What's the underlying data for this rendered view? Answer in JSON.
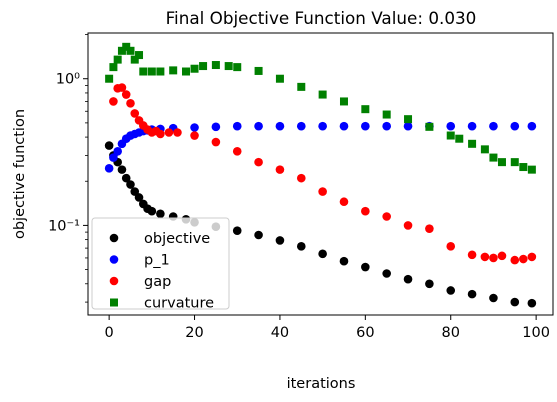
{
  "chart_data": {
    "type": "scatter",
    "title": "Final Objective Function Value: 0.030",
    "xlabel": "iterations",
    "ylabel": "objective function",
    "x_range": [
      -4.95,
      103.95
    ],
    "y_range": [
      0.0245,
      2.05
    ],
    "y_scale": "log",
    "x_ticks": [
      0,
      20,
      40,
      60,
      80,
      100
    ],
    "x_tick_labels": [
      "0",
      "20",
      "40",
      "60",
      "80",
      "100"
    ],
    "y_ticks": [
      0.1,
      1.0
    ],
    "y_tick_labels": [
      "10⁻¹",
      "10⁰"
    ],
    "grid": false,
    "legend_position": "lower-left",
    "series": [
      {
        "name": "objective",
        "marker": "circle",
        "color": "#000000",
        "x": [
          0,
          1,
          2,
          3,
          4,
          5,
          6,
          7,
          8,
          9,
          10,
          12,
          15,
          18,
          20,
          25,
          30,
          35,
          40,
          45,
          50,
          55,
          60,
          65,
          70,
          75,
          80,
          85,
          90,
          95,
          99
        ],
        "y": [
          0.35,
          0.3,
          0.27,
          0.24,
          0.21,
          0.19,
          0.17,
          0.155,
          0.14,
          0.13,
          0.125,
          0.12,
          0.115,
          0.11,
          0.105,
          0.098,
          0.092,
          0.086,
          0.079,
          0.072,
          0.064,
          0.057,
          0.052,
          0.047,
          0.043,
          0.04,
          0.036,
          0.034,
          0.032,
          0.03,
          0.0295
        ]
      },
      {
        "name": "p_1",
        "marker": "circle",
        "color": "#0000ff",
        "x": [
          0,
          1,
          2,
          3,
          4,
          5,
          6,
          7,
          8,
          9,
          10,
          12,
          15,
          20,
          25,
          30,
          35,
          40,
          45,
          50,
          55,
          60,
          65,
          70,
          75,
          80,
          85,
          90,
          95,
          99
        ],
        "y": [
          0.245,
          0.29,
          0.32,
          0.36,
          0.39,
          0.41,
          0.42,
          0.43,
          0.44,
          0.445,
          0.45,
          0.455,
          0.46,
          0.465,
          0.47,
          0.475,
          0.475,
          0.475,
          0.475,
          0.475,
          0.475,
          0.475,
          0.475,
          0.475,
          0.475,
          0.475,
          0.475,
          0.475,
          0.475,
          0.475
        ]
      },
      {
        "name": "gap",
        "marker": "circle",
        "color": "#ff0000",
        "x": [
          1,
          2,
          3,
          4,
          5,
          6,
          7,
          8,
          9,
          10,
          11,
          12,
          14,
          16,
          20,
          25,
          30,
          35,
          40,
          45,
          50,
          55,
          60,
          65,
          70,
          75,
          80,
          85,
          88,
          90,
          92,
          95,
          97,
          99
        ],
        "y": [
          0.7,
          0.86,
          0.87,
          0.78,
          0.68,
          0.58,
          0.52,
          0.48,
          0.45,
          0.43,
          0.44,
          0.42,
          0.43,
          0.43,
          0.41,
          0.37,
          0.32,
          0.27,
          0.24,
          0.21,
          0.17,
          0.145,
          0.125,
          0.115,
          0.1,
          0.095,
          0.072,
          0.063,
          0.061,
          0.06,
          0.062,
          0.058,
          0.059,
          0.061
        ]
      },
      {
        "name": "curvature",
        "marker": "square",
        "color": "#008000",
        "x": [
          0,
          1,
          2,
          3,
          4,
          5,
          6,
          7,
          8,
          10,
          12,
          15,
          18,
          20,
          22,
          25,
          28,
          30,
          35,
          40,
          45,
          50,
          55,
          60,
          65,
          70,
          75,
          80,
          82,
          85,
          88,
          90,
          92,
          95,
          97,
          99
        ],
        "y": [
          1.0,
          1.2,
          1.35,
          1.55,
          1.65,
          1.55,
          1.35,
          1.45,
          1.12,
          1.12,
          1.12,
          1.14,
          1.12,
          1.17,
          1.22,
          1.24,
          1.22,
          1.2,
          1.13,
          1.0,
          0.88,
          0.78,
          0.7,
          0.62,
          0.57,
          0.53,
          0.47,
          0.41,
          0.39,
          0.36,
          0.33,
          0.29,
          0.27,
          0.27,
          0.25,
          0.24
        ]
      }
    ]
  }
}
